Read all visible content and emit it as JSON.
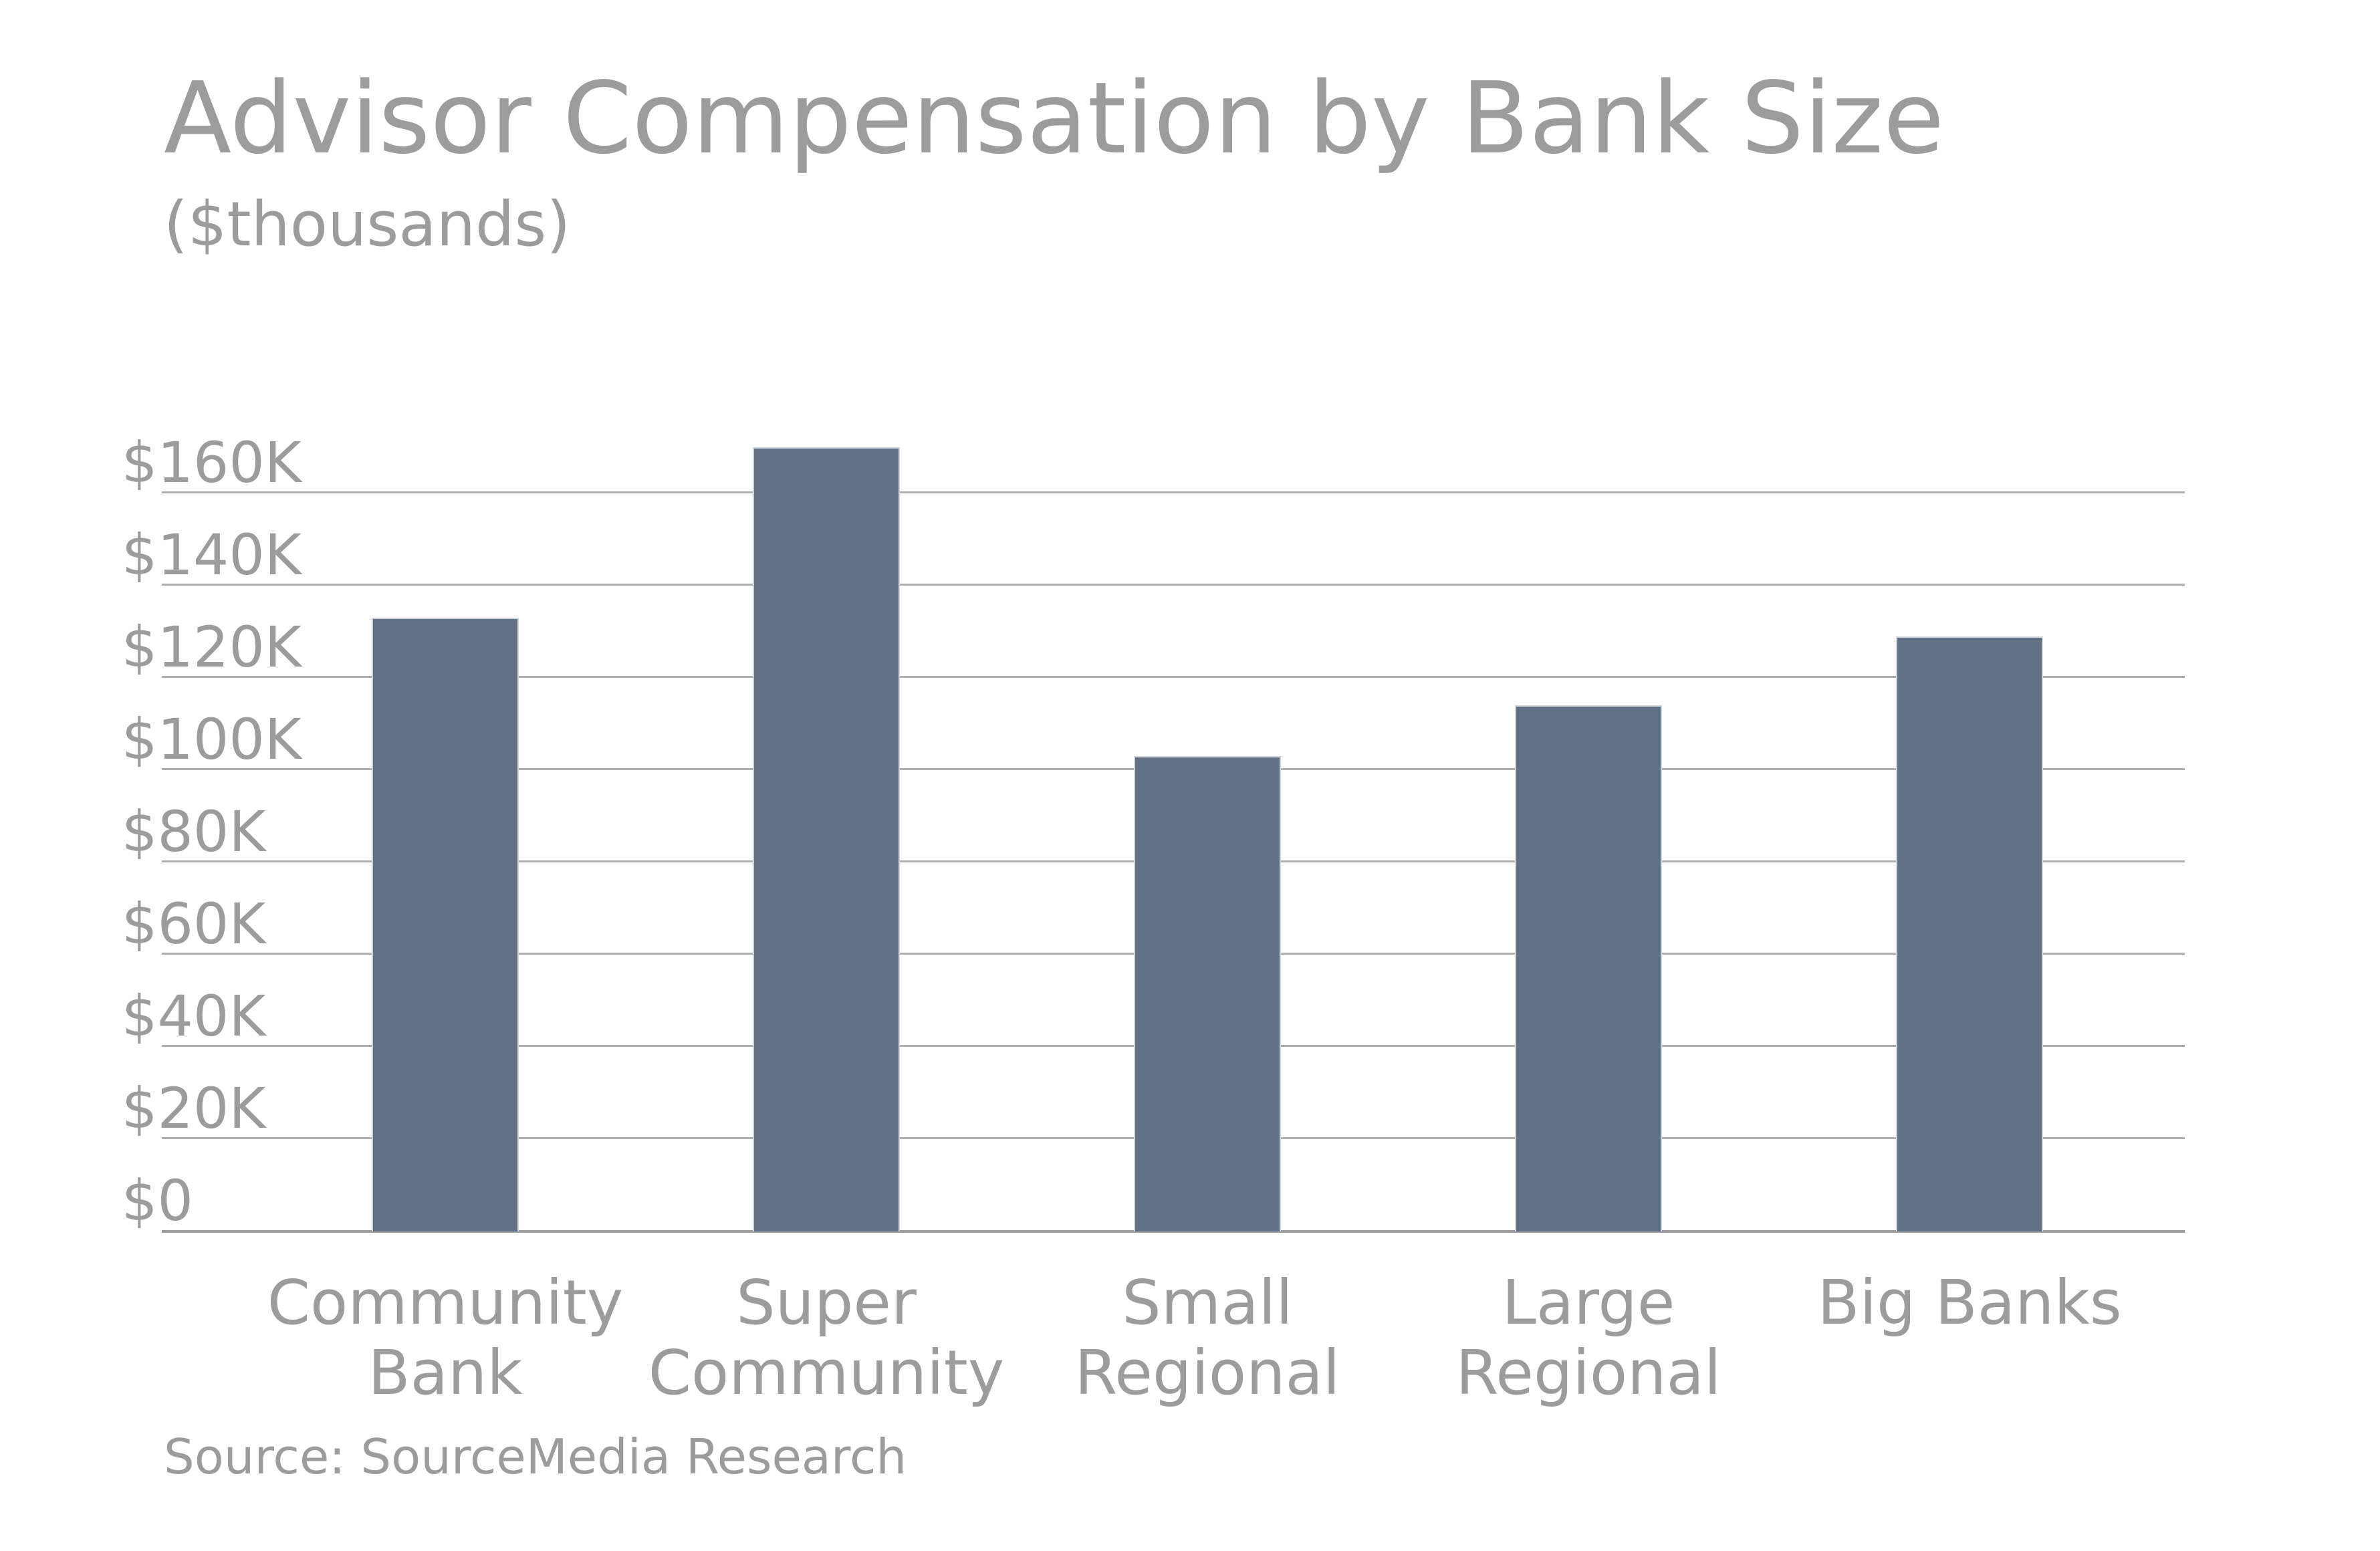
{
  "chart_data": {
    "type": "bar",
    "title": "Advisor Compensation by Bank Size",
    "subtitle": "($thousands)",
    "categories": [
      "Community Bank",
      "Super Community",
      "Small Regional",
      "Large Regional",
      "Big Banks"
    ],
    "values": [
      133,
      170,
      103,
      114,
      129
    ],
    "unit": "USD thousands",
    "yticks": [
      0,
      20,
      40,
      60,
      80,
      100,
      120,
      140,
      160
    ],
    "ytick_labels": [
      "$0",
      "$20K",
      "$40K",
      "$60K",
      "$80K",
      "$100K",
      "$120K",
      "$140K",
      "$160K"
    ],
    "ylim": [
      0,
      180
    ],
    "xlabel": "",
    "ylabel": "",
    "grid": true,
    "legend": false,
    "source": "Source: SourceMedia Research",
    "bar_color": "#617084",
    "bar_border_color": "#cfd4db",
    "gridline_color": "#aeaeae",
    "axis_color": "#9c9c9c",
    "text_color": "#9c9c9c"
  }
}
